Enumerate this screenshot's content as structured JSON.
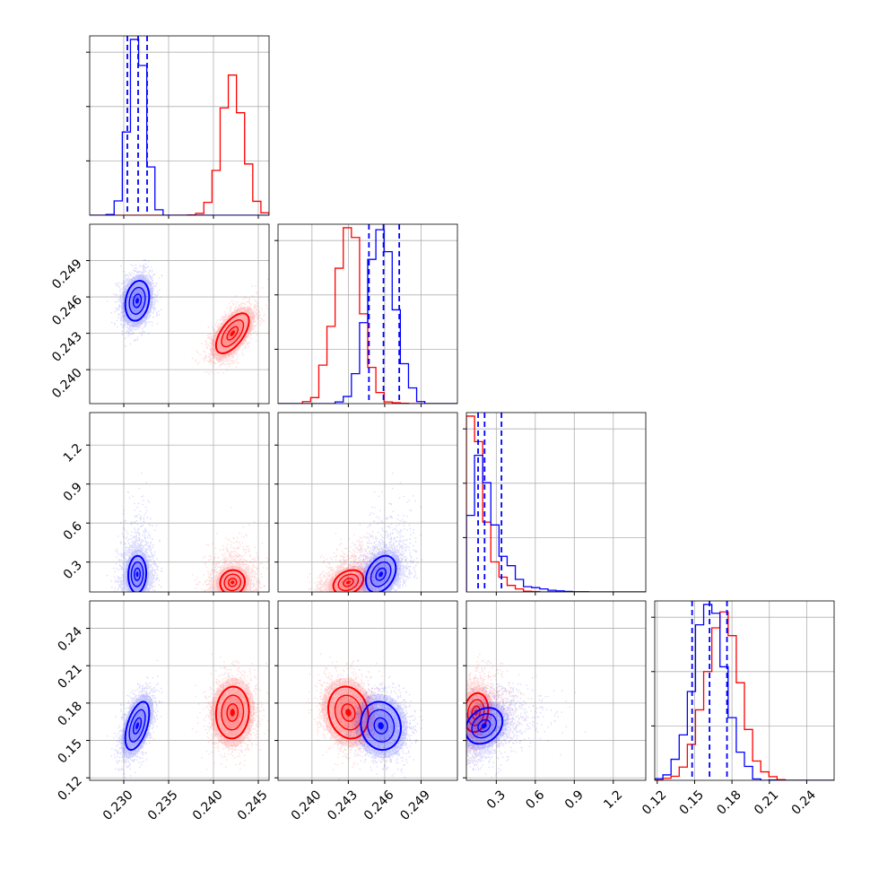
{
  "chart_data": {
    "type": "corner",
    "grid": true,
    "parameters": [
      {
        "ticks": [
          0.23,
          0.235,
          0.24,
          0.245
        ],
        "tick_labels": [
          "0.230",
          "0.235",
          "0.240",
          "0.245"
        ],
        "range": [
          0.2262,
          0.2462
        ]
      },
      {
        "ticks": [
          0.24,
          0.243,
          0.246,
          0.249
        ],
        "tick_labels": [
          "0.240",
          "0.243",
          "0.246",
          "0.249"
        ],
        "range": [
          0.2372,
          0.252
        ]
      },
      {
        "ticks": [
          0.3,
          0.6,
          0.9,
          1.2
        ],
        "tick_labels": [
          "0.3",
          "0.6",
          "0.9",
          "1.2"
        ],
        "range": [
          0.07,
          1.45
        ]
      },
      {
        "ticks": [
          0.12,
          0.15,
          0.18,
          0.21,
          0.24
        ],
        "tick_labels": [
          "0.12",
          "0.15",
          "0.18",
          "0.21",
          "0.24"
        ],
        "range": [
          0.118,
          0.262
        ]
      }
    ],
    "series": [
      {
        "color": "#0000ff",
        "mean": [
          0.2315,
          0.2457,
          0.22,
          0.162
        ],
        "std": [
          0.0009,
          0.0011,
          0.09,
          0.013
        ],
        "corr": [
          [
            0,
            1,
            0.15
          ],
          [
            0,
            2,
            0.05
          ],
          [
            0,
            3,
            0.55
          ],
          [
            1,
            2,
            0.35
          ],
          [
            1,
            3,
            -0.1
          ],
          [
            2,
            3,
            0.25
          ]
        ],
        "skew": [
          0,
          0,
          1,
          0
        ],
        "quantiles": [
          [
            0.2304,
            0.2316,
            0.2326
          ],
          [
            0.2447,
            0.2459,
            0.2472
          ],
          [
            0.16,
            0.21,
            0.34
          ],
          [
            0.148,
            0.162,
            0.176
          ]
        ],
        "hist_bins": 20
      },
      {
        "color": "#ff0000",
        "mean": [
          0.2421,
          0.243,
          0.15,
          0.172
        ],
        "std": [
          0.0012,
          0.0011,
          0.04,
          0.014
        ],
        "corr": [
          [
            0,
            1,
            0.6
          ],
          [
            0,
            2,
            0.05
          ],
          [
            0,
            3,
            0.05
          ],
          [
            1,
            2,
            0.3
          ],
          [
            1,
            3,
            -0.15
          ],
          [
            2,
            3,
            0.15
          ]
        ],
        "skew": [
          0,
          0,
          1,
          0
        ],
        "hist_bins": 20
      }
    ]
  }
}
